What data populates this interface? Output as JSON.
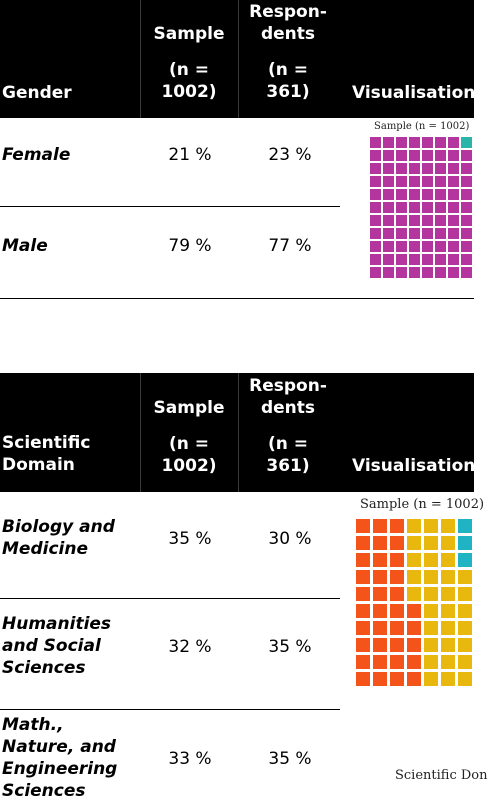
{
  "table1": {
    "headers": {
      "category": "Gender",
      "sample": "Sample",
      "sample_n": "(n =",
      "sample_n2": "1002)",
      "respondents": "Respon-",
      "respondents2": "dents",
      "respondents_n": "(n =",
      "respondents_n2": "361)",
      "visualisation": "Visualisation"
    },
    "rows": [
      {
        "label": "Female",
        "sample": "21 %",
        "respondents": "23 %"
      },
      {
        "label": "Male",
        "sample": "79 %",
        "respondents": "77 %"
      }
    ],
    "visual": {
      "title": "Sample (n = 1002)",
      "colors": {
        "primary": "#b5359e",
        "accent": "#2bb5a8"
      }
    }
  },
  "table2": {
    "headers": {
      "category": "Scientific",
      "category2": "Domain",
      "sample": "Sample",
      "sample_n": "(n =",
      "sample_n2": "1002)",
      "respondents": "Respon-",
      "respondents2": "dents",
      "respondents_n": "(n =",
      "respondents_n2": "361)",
      "visualisation": "Visualisation"
    },
    "rows": [
      {
        "label_lines": [
          "Biology and",
          "Medicine"
        ],
        "sample": "35 %",
        "respondents": "30 %"
      },
      {
        "label_lines": [
          "Humanities",
          "and Social",
          "Sciences"
        ],
        "sample": "32 %",
        "respondents": "35 %"
      },
      {
        "label_lines": [
          "Math.,",
          "Nature, and",
          "Engineering",
          "Sciences"
        ],
        "sample": "33 %",
        "respondents": "35 %"
      }
    ],
    "visual": {
      "title": "Sample (n = 1002)",
      "caption": "Scientific Don",
      "colors": {
        "orange": "#f4541a",
        "yellow": "#e8b80f",
        "teal": "#1fb3c4"
      }
    }
  }
}
